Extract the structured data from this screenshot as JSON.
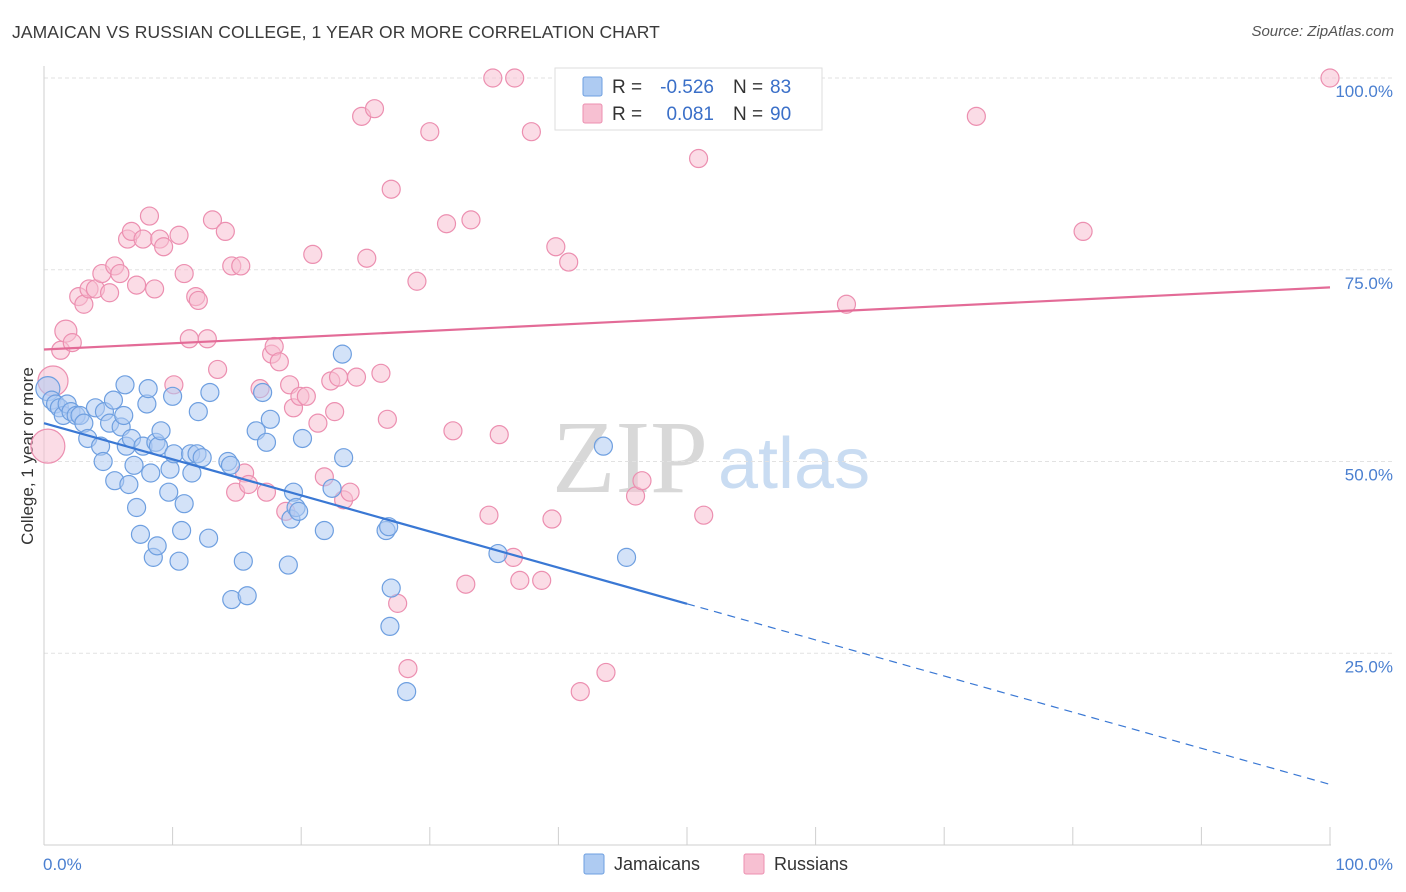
{
  "header": {
    "title": "JAMAICAN VS RUSSIAN COLLEGE, 1 YEAR OR MORE CORRELATION CHART",
    "source": "Source: ZipAtlas.com"
  },
  "watermark": {
    "zip": "ZIP",
    "atlas": "atlas"
  },
  "colors": {
    "blue_fill": "#aecbf2",
    "blue_stroke": "#6e9fe0",
    "blue_line": "#3a78d4",
    "pink_fill": "#f7c0d2",
    "pink_stroke": "#ec8fb0",
    "pink_line": "#e36b97",
    "grid": "#e2e2e2",
    "tick_label": "#4a7fd0"
  },
  "legend_top": {
    "rows": [
      {
        "r_label": "R =",
        "r_value": "-0.526",
        "n_label": "N =",
        "n_value": "83"
      },
      {
        "r_label": "R =",
        "r_value": "0.081",
        "n_label": "N =",
        "n_value": "90"
      }
    ]
  },
  "legend_bottom": {
    "items": [
      "Jamaicans",
      "Russians"
    ]
  },
  "chart_data": {
    "type": "scatter",
    "title": "JAMAICAN VS RUSSIAN COLLEGE, 1 YEAR OR MORE CORRELATION CHART",
    "xlabel": "",
    "ylabel": "College, 1 year or more",
    "xlim": [
      0,
      100
    ],
    "ylim": [
      0,
      100
    ],
    "x_tick_labels": [
      "0.0%",
      "100.0%"
    ],
    "y_ticks": [
      25,
      50,
      75,
      100
    ],
    "y_tick_labels": [
      "25.0%",
      "50.0%",
      "75.0%",
      "100.0%"
    ],
    "grid": true,
    "legend_placement": "top-center",
    "series": [
      {
        "name": "Jamaicans",
        "color": "#aecbf2",
        "r": -0.526,
        "n": 83,
        "trend": {
          "x_start": 0,
          "y_start": 55.0,
          "x_solid_end": 50,
          "x_end": 100,
          "y_end": 7.9
        },
        "points": [
          [
            0.3,
            59.5
          ],
          [
            0.6,
            58
          ],
          [
            0.9,
            57.5
          ],
          [
            1.2,
            57
          ],
          [
            1.5,
            56
          ],
          [
            1.8,
            57.5
          ],
          [
            2.1,
            56.5
          ],
          [
            2.5,
            56
          ],
          [
            2.8,
            56
          ],
          [
            3.1,
            55
          ],
          [
            3.4,
            53
          ],
          [
            4.0,
            57
          ],
          [
            4.4,
            52
          ],
          [
            4.6,
            50
          ],
          [
            4.7,
            56.5
          ],
          [
            5.1,
            55
          ],
          [
            5.4,
            58
          ],
          [
            5.5,
            47.5
          ],
          [
            6.0,
            54.5
          ],
          [
            6.2,
            56
          ],
          [
            6.3,
            60
          ],
          [
            6.4,
            52
          ],
          [
            6.6,
            47
          ],
          [
            6.8,
            53
          ],
          [
            7.0,
            49.5
          ],
          [
            7.2,
            44
          ],
          [
            7.5,
            40.5
          ],
          [
            7.7,
            52
          ],
          [
            8.0,
            57.5
          ],
          [
            8.1,
            59.5
          ],
          [
            8.3,
            48.5
          ],
          [
            8.5,
            37.5
          ],
          [
            8.7,
            52.5
          ],
          [
            8.8,
            39
          ],
          [
            8.9,
            52
          ],
          [
            9.1,
            54
          ],
          [
            9.7,
            46
          ],
          [
            9.8,
            49
          ],
          [
            10.0,
            58.5
          ],
          [
            10.1,
            51
          ],
          [
            10.5,
            37
          ],
          [
            10.7,
            41
          ],
          [
            10.9,
            44.5
          ],
          [
            11.4,
            51
          ],
          [
            11.5,
            48.5
          ],
          [
            11.9,
            51
          ],
          [
            12.0,
            56.5
          ],
          [
            12.3,
            50.5
          ],
          [
            12.8,
            40
          ],
          [
            12.9,
            59
          ],
          [
            14.3,
            50
          ],
          [
            14.5,
            49.5
          ],
          [
            14.6,
            32
          ],
          [
            15.5,
            37
          ],
          [
            15.8,
            32.5
          ],
          [
            16.5,
            54
          ],
          [
            17.0,
            59
          ],
          [
            17.3,
            52.5
          ],
          [
            17.6,
            55.5
          ],
          [
            19.0,
            36.5
          ],
          [
            19.2,
            42.5
          ],
          [
            19.4,
            46
          ],
          [
            19.6,
            44
          ],
          [
            19.8,
            43.5
          ],
          [
            20.1,
            53
          ],
          [
            21.8,
            41
          ],
          [
            22.4,
            46.5
          ],
          [
            23.2,
            64
          ],
          [
            23.3,
            50.5
          ],
          [
            26.6,
            41
          ],
          [
            26.8,
            41.5
          ],
          [
            26.9,
            28.5
          ],
          [
            27.0,
            33.5
          ],
          [
            28.2,
            20
          ],
          [
            35.3,
            38
          ],
          [
            43.5,
            52
          ],
          [
            45.3,
            37.5
          ]
        ]
      },
      {
        "name": "Russians",
        "color": "#f7c0d2",
        "r": 0.081,
        "n": 90,
        "trend": {
          "x_start": 0,
          "y_start": 64.6,
          "x_end": 100,
          "y_end": 72.7
        },
        "points": [
          [
            0.3,
            52
          ],
          [
            0.7,
            60.5
          ],
          [
            1.3,
            64.5
          ],
          [
            1.7,
            67
          ],
          [
            2.2,
            65.5
          ],
          [
            2.7,
            71.5
          ],
          [
            3.1,
            70.5
          ],
          [
            3.5,
            72.5
          ],
          [
            4.0,
            72.5
          ],
          [
            4.5,
            74.5
          ],
          [
            5.1,
            72
          ],
          [
            5.5,
            75.5
          ],
          [
            5.9,
            74.5
          ],
          [
            6.5,
            79
          ],
          [
            6.8,
            80
          ],
          [
            7.2,
            73
          ],
          [
            7.7,
            79
          ],
          [
            8.2,
            82
          ],
          [
            8.6,
            72.5
          ],
          [
            9.0,
            79
          ],
          [
            9.3,
            78
          ],
          [
            10.1,
            60
          ],
          [
            10.5,
            79.5
          ],
          [
            10.9,
            74.5
          ],
          [
            11.3,
            66
          ],
          [
            11.8,
            71.5
          ],
          [
            12.0,
            71
          ],
          [
            12.7,
            66
          ],
          [
            13.1,
            81.5
          ],
          [
            13.5,
            62
          ],
          [
            14.1,
            80
          ],
          [
            14.6,
            75.5
          ],
          [
            14.9,
            46
          ],
          [
            15.3,
            75.5
          ],
          [
            15.6,
            48.5
          ],
          [
            15.9,
            47
          ],
          [
            16.8,
            59.5
          ],
          [
            17.3,
            46
          ],
          [
            17.7,
            64
          ],
          [
            17.9,
            65
          ],
          [
            18.3,
            63
          ],
          [
            18.8,
            43.5
          ],
          [
            19.1,
            60
          ],
          [
            19.4,
            57
          ],
          [
            19.9,
            58.5
          ],
          [
            20.4,
            58.5
          ],
          [
            20.9,
            77
          ],
          [
            21.3,
            55
          ],
          [
            21.8,
            48
          ],
          [
            22.3,
            60.5
          ],
          [
            22.6,
            56.5
          ],
          [
            22.9,
            61
          ],
          [
            23.3,
            45
          ],
          [
            23.8,
            46
          ],
          [
            24.3,
            61
          ],
          [
            24.7,
            95
          ],
          [
            25.1,
            76.5
          ],
          [
            25.7,
            96
          ],
          [
            26.2,
            61.5
          ],
          [
            26.7,
            55.5
          ],
          [
            27.0,
            85.5
          ],
          [
            27.5,
            31.5
          ],
          [
            28.3,
            23
          ],
          [
            29.0,
            73.5
          ],
          [
            30.0,
            93
          ],
          [
            31.3,
            81
          ],
          [
            31.8,
            54
          ],
          [
            32.8,
            34
          ],
          [
            33.2,
            81.5
          ],
          [
            34.6,
            43
          ],
          [
            35.4,
            53.5
          ],
          [
            36.5,
            37.5
          ],
          [
            37.0,
            34.5
          ],
          [
            37.9,
            93
          ],
          [
            38.7,
            34.5
          ],
          [
            39.5,
            42.5
          ],
          [
            39.8,
            78
          ],
          [
            40.8,
            76
          ],
          [
            41.7,
            20
          ],
          [
            43.7,
            22.5
          ],
          [
            46.0,
            45.5
          ],
          [
            46.5,
            47.5
          ],
          [
            50.9,
            89.5
          ],
          [
            51.3,
            43
          ],
          [
            58.0,
            100
          ],
          [
            62.4,
            70.5
          ],
          [
            72.5,
            95
          ],
          [
            80.8,
            80
          ],
          [
            100.0,
            100
          ],
          [
            34.9,
            100
          ],
          [
            36.6,
            100
          ]
        ]
      }
    ]
  }
}
